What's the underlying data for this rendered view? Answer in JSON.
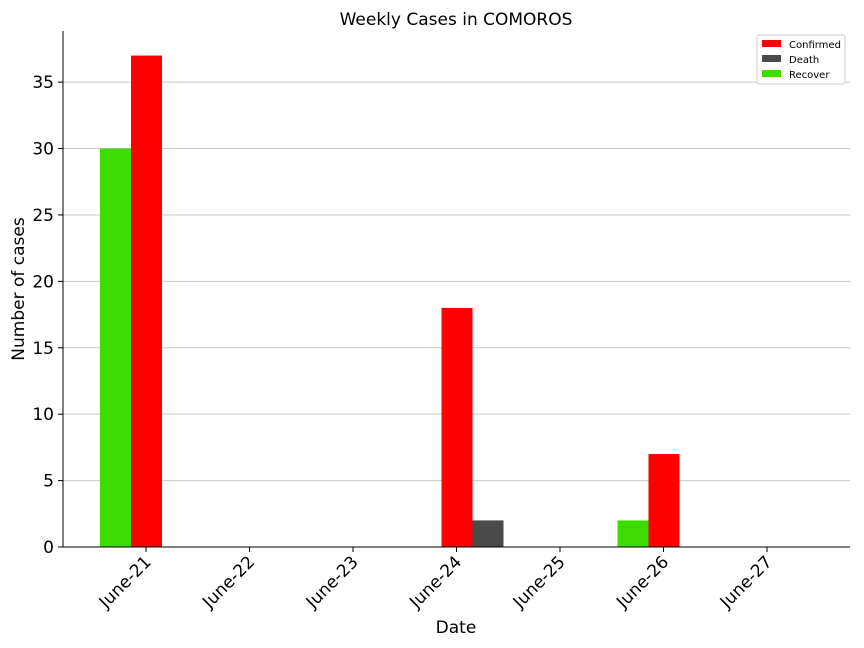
{
  "chart_data": {
    "type": "bar",
    "title": "Weekly Cases in COMOROS",
    "xlabel": "Date",
    "ylabel": "Number of cases",
    "categories": [
      "June-21",
      "June-22",
      "June-23",
      "June-24",
      "June-25",
      "June-26",
      "June-27"
    ],
    "series": [
      {
        "name": "Confirmed",
        "color": "#ff0000",
        "values": [
          37,
          0,
          0,
          18,
          0,
          7,
          0
        ]
      },
      {
        "name": "Death",
        "color": "#4a4a4a",
        "values": [
          0,
          0,
          0,
          2,
          0,
          0,
          0
        ]
      },
      {
        "name": "Recover",
        "color": "#3cdc00",
        "values": [
          30,
          0,
          0,
          0,
          0,
          2,
          0
        ]
      }
    ],
    "ylim": [
      0,
      38.85
    ],
    "yticks": [
      0,
      5,
      10,
      15,
      20,
      25,
      30,
      35
    ],
    "grid": "horizontal",
    "legend_position": "top-right"
  }
}
